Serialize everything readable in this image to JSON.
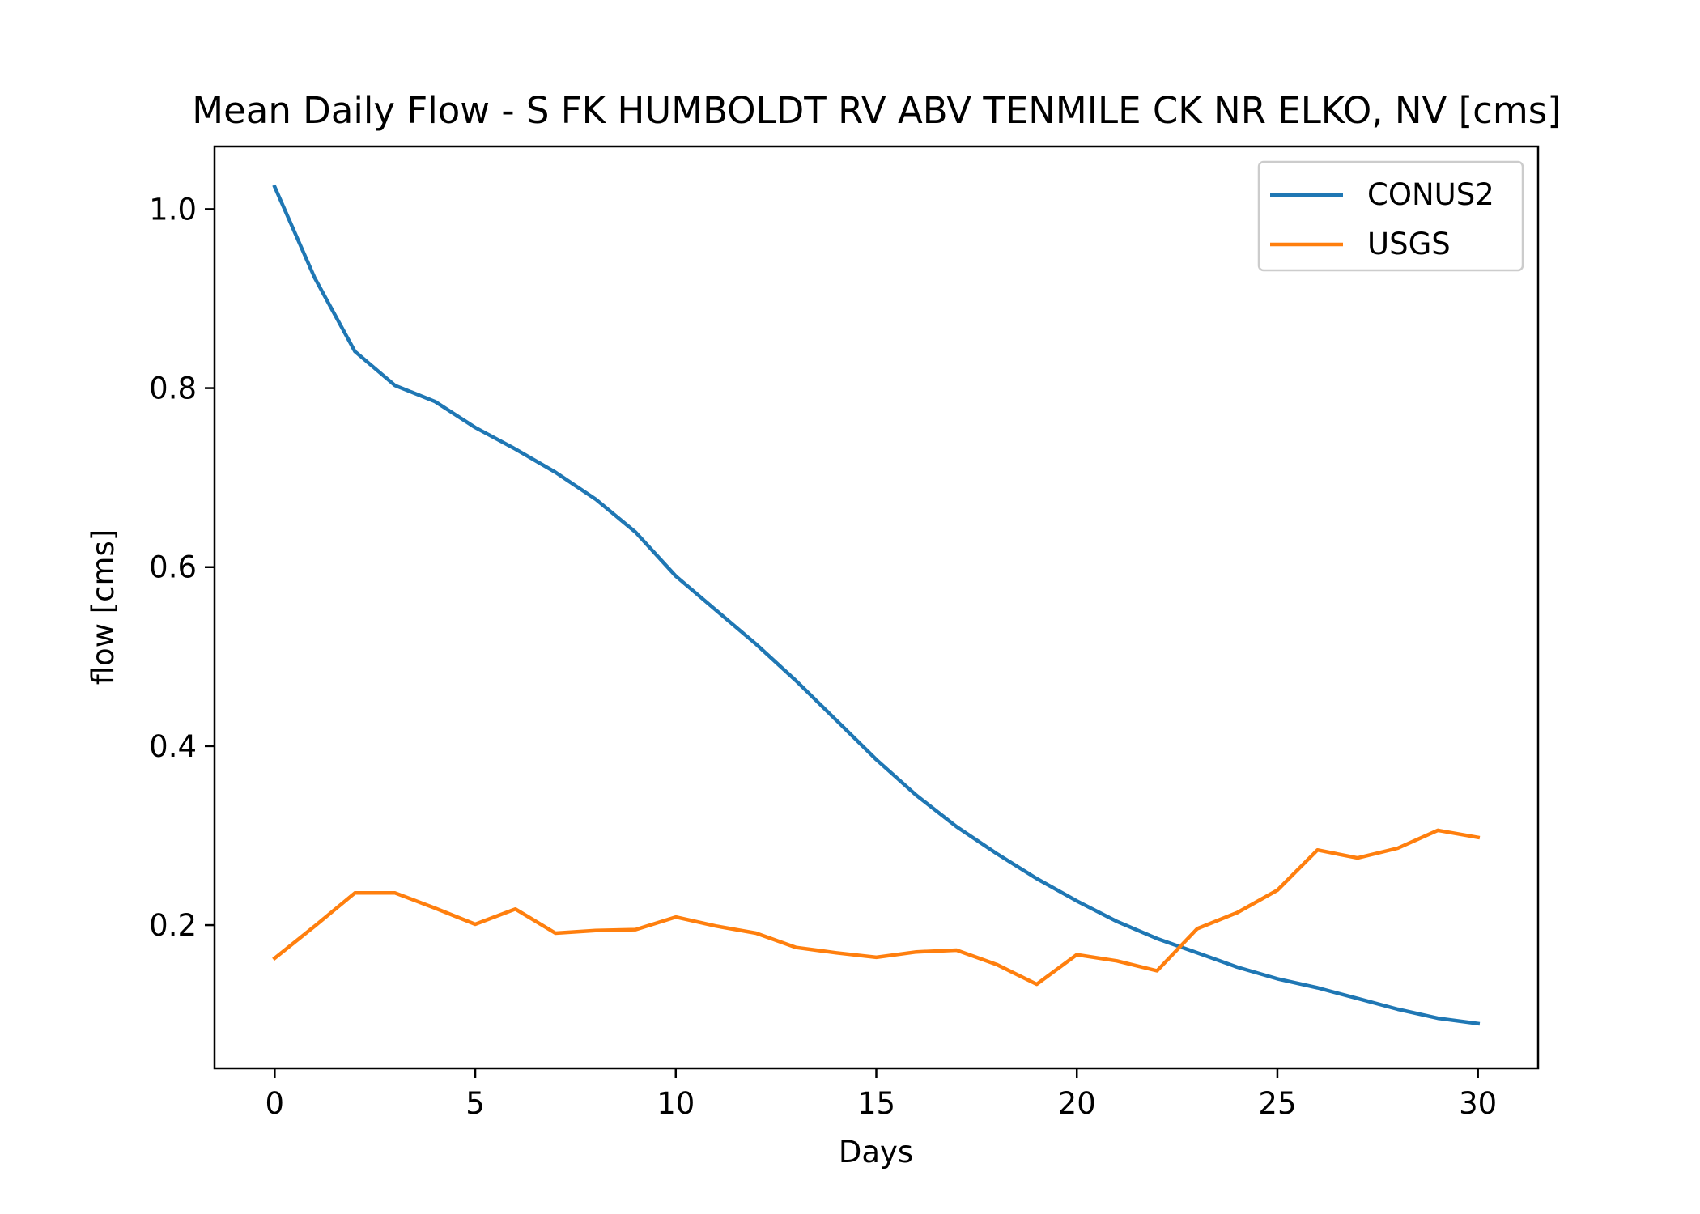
{
  "chart_data": {
    "type": "line",
    "title": "Mean Daily Flow - S FK HUMBOLDT RV ABV TENMILE CK NR ELKO, NV [cms]",
    "xlabel": "Days",
    "ylabel": "flow [cms]",
    "xlim": [
      -1.5,
      31.5
    ],
    "ylim": [
      0.04,
      1.07
    ],
    "xticks": [
      0,
      5,
      10,
      15,
      20,
      25,
      30
    ],
    "yticks": [
      0.2,
      0.4,
      0.6,
      0.8,
      1.0
    ],
    "xtick_labels": [
      "0",
      "5",
      "10",
      "15",
      "20",
      "25",
      "30"
    ],
    "ytick_labels": [
      "0.2",
      "0.4",
      "0.6",
      "0.8",
      "1.0"
    ],
    "grid": false,
    "legend_position": "top-right",
    "x": [
      0,
      1,
      2,
      3,
      4,
      5,
      6,
      7,
      8,
      9,
      10,
      11,
      12,
      13,
      14,
      15,
      16,
      17,
      18,
      19,
      20,
      21,
      22,
      23,
      24,
      25,
      26,
      27,
      28,
      29,
      30
    ],
    "series": [
      {
        "name": "CONUS2",
        "color": "#1f77b4",
        "values": [
          1.025,
          0.923,
          0.841,
          0.803,
          0.785,
          0.756,
          0.732,
          0.706,
          0.676,
          0.639,
          0.59,
          0.552,
          0.514,
          0.473,
          0.429,
          0.385,
          0.345,
          0.31,
          0.28,
          0.252,
          0.227,
          0.204,
          0.185,
          0.169,
          0.153,
          0.14,
          0.13,
          0.118,
          0.106,
          0.096,
          0.09
        ]
      },
      {
        "name": "USGS",
        "color": "#ff7f0e",
        "values": [
          0.163,
          0.199,
          0.236,
          0.236,
          0.219,
          0.201,
          0.218,
          0.191,
          0.194,
          0.195,
          0.209,
          0.199,
          0.191,
          0.175,
          0.169,
          0.164,
          0.17,
          0.172,
          0.156,
          0.134,
          0.167,
          0.16,
          0.149,
          0.196,
          0.214,
          0.239,
          0.284,
          0.275,
          0.286,
          0.306,
          0.298
        ]
      }
    ]
  }
}
